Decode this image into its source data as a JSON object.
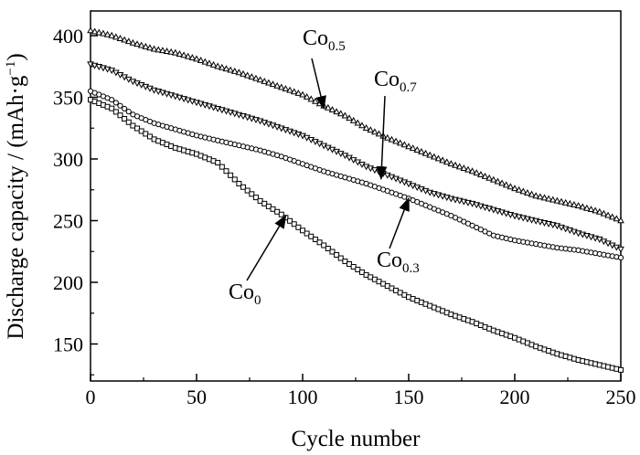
{
  "chart_data": {
    "type": "line",
    "xlabel": "Cycle number",
    "ylabel": "Discharge capacity / (mAh·g",
    "ylabel_unit_superscript": "−1",
    "ylabel_suffix": ")",
    "xlim": [
      0,
      250
    ],
    "ylim": [
      120,
      420
    ],
    "x_ticks": [
      0,
      50,
      100,
      150,
      200,
      250
    ],
    "y_ticks": [
      150,
      200,
      250,
      300,
      350,
      400
    ],
    "grid": false,
    "legend": "none",
    "series": [
      {
        "name": "Co0.5",
        "label_base": "Co",
        "label_sub": "0.5",
        "marker": "triangle-up",
        "x": [
          0,
          10,
          20,
          30,
          40,
          50,
          60,
          70,
          80,
          90,
          100,
          110,
          120,
          130,
          140,
          150,
          160,
          170,
          180,
          190,
          200,
          210,
          220,
          230,
          240,
          250
        ],
        "y": [
          404,
          400,
          394,
          389,
          386,
          381,
          375,
          370,
          364,
          358,
          352,
          343,
          335,
          325,
          317,
          310,
          303,
          296,
          290,
          283,
          276,
          270,
          266,
          262,
          257,
          250
        ]
      },
      {
        "name": "Co0.7",
        "label_base": "Co",
        "label_sub": "0.7",
        "marker": "triangle-down",
        "x": [
          0,
          10,
          20,
          30,
          40,
          50,
          60,
          70,
          80,
          90,
          100,
          110,
          120,
          130,
          140,
          150,
          160,
          170,
          180,
          190,
          200,
          210,
          220,
          230,
          240,
          250
        ],
        "y": [
          377,
          372,
          363,
          356,
          351,
          346,
          341,
          336,
          331,
          325,
          319,
          311,
          303,
          294,
          287,
          280,
          273,
          268,
          264,
          259,
          254,
          250,
          246,
          240,
          235,
          227
        ]
      },
      {
        "name": "Co0.3",
        "label_base": "Co",
        "label_sub": "0.3",
        "marker": "circle",
        "x": [
          0,
          10,
          20,
          30,
          40,
          50,
          60,
          70,
          80,
          90,
          100,
          110,
          120,
          130,
          140,
          150,
          160,
          170,
          180,
          190,
          200,
          210,
          220,
          230,
          240,
          250
        ],
        "y": [
          355,
          348,
          336,
          329,
          324,
          319,
          315,
          311,
          307,
          302,
          296,
          290,
          285,
          280,
          274,
          268,
          261,
          254,
          246,
          238,
          234,
          231,
          228,
          226,
          223,
          220
        ]
      },
      {
        "name": "Co0",
        "label_base": "Co",
        "label_sub": "0",
        "marker": "square",
        "x": [
          0,
          10,
          20,
          30,
          40,
          50,
          60,
          70,
          80,
          90,
          100,
          110,
          120,
          130,
          140,
          150,
          160,
          170,
          180,
          190,
          200,
          210,
          220,
          230,
          240,
          250
        ],
        "y": [
          348,
          341,
          327,
          316,
          309,
          304,
          297,
          280,
          266,
          255,
          242,
          230,
          217,
          206,
          197,
          188,
          181,
          174,
          168,
          161,
          155,
          148,
          142,
          137,
          133,
          129
        ]
      }
    ],
    "annotations": [
      {
        "series": "Co0.5",
        "label_base": "Co",
        "label_sub": "0.5",
        "arrow_to": [
          110,
          341
        ]
      },
      {
        "series": "Co0.7",
        "label_base": "Co",
        "label_sub": "0.7",
        "arrow_to": [
          137,
          284
        ]
      },
      {
        "series": "Co0.3",
        "label_base": "Co",
        "label_sub": "0.3",
        "arrow_to": [
          150,
          268
        ]
      },
      {
        "series": "Co0",
        "label_base": "Co",
        "label_sub": "0",
        "arrow_to": [
          92,
          254
        ]
      }
    ]
  }
}
